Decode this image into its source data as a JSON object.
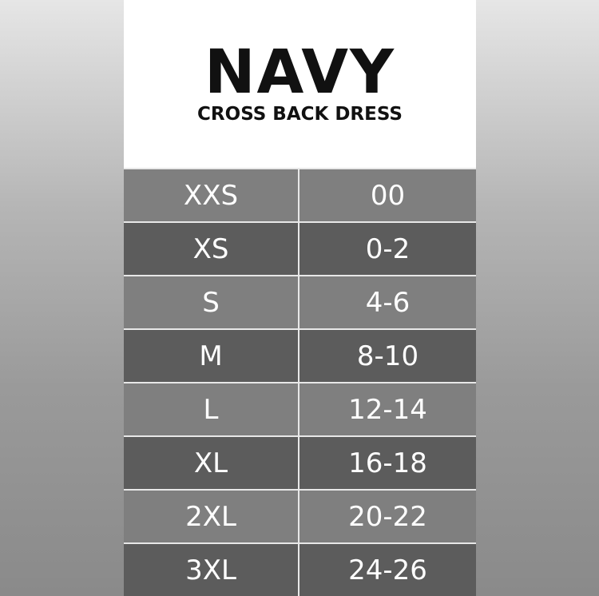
{
  "header": {
    "title": "NAVY",
    "subtitle": "CROSS BACK DRESS"
  },
  "colors": {
    "row_light": "#7f7f7f",
    "row_dark": "#5c5c5c"
  },
  "rows": [
    [
      "XXS",
      "00"
    ],
    [
      "XS",
      "0-2"
    ],
    [
      "S",
      "4-6"
    ],
    [
      "M",
      "8-10"
    ],
    [
      "L",
      "12-14"
    ],
    [
      "XL",
      "16-18"
    ],
    [
      "2XL",
      "20-22"
    ],
    [
      "3XL",
      "24-26"
    ]
  ]
}
